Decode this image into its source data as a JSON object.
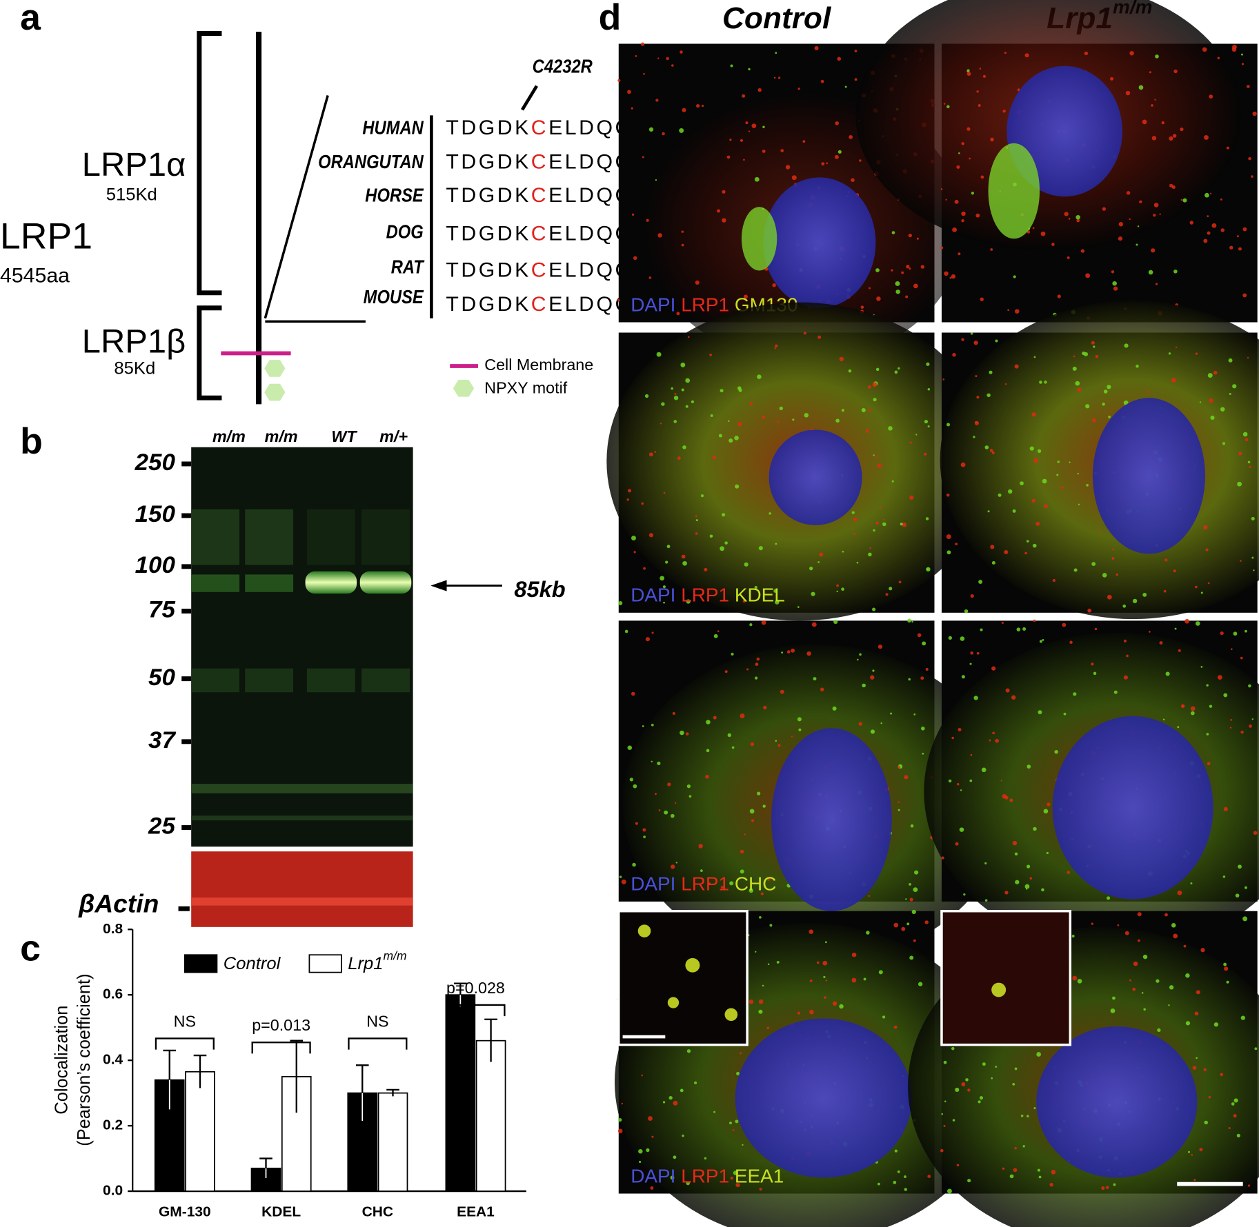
{
  "panel_a": {
    "label": "a",
    "protein": "LRP1",
    "length": "4545aa",
    "alpha": "LRP1α",
    "alpha_mass": "515Kd",
    "beta": "LRP1β",
    "beta_mass": "85Kd",
    "mutation": "C4232R",
    "species": [
      "HUMAN",
      "ORANGUTAN",
      "HORSE",
      "DOG",
      "RAT",
      "MOUSE"
    ],
    "sequences": [
      {
        "before": "TDGDK",
        "residue": "C",
        "after": "ELDQC"
      },
      {
        "before": "TDGDK",
        "residue": "C",
        "after": "ELDQC"
      },
      {
        "before": "TDGDK",
        "residue": "C",
        "after": "ELDQC"
      },
      {
        "before": "TDGDK",
        "residue": "C",
        "after": "ELDQC"
      },
      {
        "before": "TDGDK",
        "residue": "C",
        "after": "ELDQC"
      },
      {
        "before": "TDGDK",
        "residue": "C",
        "after": "ELDQC"
      }
    ],
    "legend": [
      "Cell Membrane",
      "NPXY motif"
    ]
  },
  "panel_b": {
    "label": "b",
    "lanes": [
      "m/m",
      "m/m",
      "WT",
      "m/+"
    ],
    "markers": [
      250,
      150,
      100,
      75,
      50,
      37,
      25
    ],
    "band": "85kb",
    "loading": "βActin"
  },
  "chart_data": {
    "type": "bar",
    "panel_label": "c",
    "categories": [
      "GM-130",
      "KDEL",
      "CHC",
      "EEA1"
    ],
    "series": [
      {
        "name": "Control",
        "color": "#000000",
        "values": [
          0.34,
          0.07,
          0.3,
          0.6
        ],
        "errors": [
          0.09,
          0.03,
          0.085,
          0.035
        ]
      },
      {
        "name": "Lrp1",
        "name_sup": "m/m",
        "color": "#ffffff",
        "values": [
          0.365,
          0.35,
          0.3,
          0.46
        ],
        "errors": [
          0.05,
          0.11,
          0.01,
          0.065
        ]
      }
    ],
    "y_label": [
      "Colocalization",
      "(Pearson’s coefficient)"
    ],
    "ylim": [
      0,
      0.8
    ],
    "yticks": [
      {
        "value": 0,
        "label": "0.0"
      },
      0.2,
      0.4,
      0.6,
      0.8
    ],
    "annotations": [
      "NS",
      "p=0.013",
      "NS",
      "p=0.028"
    ]
  },
  "panel_d": {
    "label": "d",
    "columns": [
      {
        "text": "Control"
      },
      {
        "text": "Lrp1",
        "sup": "m/m"
      }
    ],
    "rows": [
      [
        "DAPI",
        "LRP1",
        "GM130"
      ],
      [
        "DAPI",
        "LRP1",
        "KDEL"
      ],
      [
        "DAPI",
        "LRP1",
        "CHC"
      ],
      [
        "DAPI",
        "LRP1",
        "EEA1"
      ]
    ]
  }
}
